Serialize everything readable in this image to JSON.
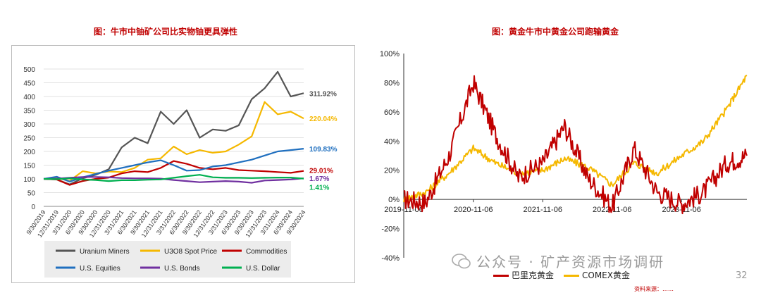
{
  "left": {
    "title": "图：牛市中铀矿公司比实物铀更具弹性"
  },
  "right": {
    "title": "图：黄金牛市中黄金公司跑输黄金"
  },
  "watermark": "公众号 · 矿产资源市场调研",
  "page_number": "32",
  "source_note": "资料来源：……",
  "chart_data": [
    {
      "type": "line",
      "x": [
        "9/30/2019",
        "12/31/2019",
        "3/31/2020",
        "6/30/2020",
        "9/30/2020",
        "12/31/2020",
        "3/31/2021",
        "6/30/2021",
        "9/30/2021",
        "12/31/2021",
        "3/31/2022",
        "6/30/2022",
        "9/30/2022",
        "12/31/2022",
        "3/31/2023",
        "6/30/2023",
        "9/30/2023",
        "12/31/2023",
        "3/31/2024",
        "6/30/2024",
        "9/30/2024"
      ],
      "ylim": [
        0,
        500
      ],
      "yticks": [
        "0",
        "50",
        "100",
        "150",
        "200",
        "250",
        "300",
        "350",
        "400",
        "450",
        "500"
      ],
      "grid": true,
      "legend": "bottom",
      "series": [
        {
          "name": "Uranium Miners",
          "color": "#555555",
          "end_label": "311.92%",
          "values": [
            100,
            98,
            80,
            102,
            115,
            135,
            215,
            250,
            230,
            345,
            300,
            350,
            250,
            280,
            275,
            295,
            390,
            430,
            490,
            400,
            412
          ]
        },
        {
          "name": "U3O8 Spot Price",
          "color": "#f5b800",
          "end_label": "220.04%",
          "values": [
            100,
            103,
            93,
            128,
            120,
            127,
            125,
            140,
            170,
            175,
            218,
            190,
            205,
            195,
            200,
            225,
            255,
            380,
            335,
            345,
            320
          ]
        },
        {
          "name": "Commodities",
          "color": "#c00000",
          "end_label": "29.01%",
          "values": [
            100,
            98,
            78,
            92,
            100,
            105,
            120,
            128,
            125,
            140,
            165,
            155,
            140,
            135,
            140,
            132,
            130,
            128,
            125,
            122,
            129
          ]
        },
        {
          "name": "U.S. Equities",
          "color": "#1f6fbf",
          "end_label": "109.83%",
          "values": [
            100,
            108,
            90,
            106,
            118,
            130,
            140,
            150,
            160,
            168,
            150,
            130,
            132,
            145,
            150,
            160,
            170,
            185,
            200,
            205,
            210
          ]
        },
        {
          "name": "U.S. Bonds",
          "color": "#7030a0",
          "end_label": "1.67%",
          "values": [
            100,
            101,
            104,
            107,
            107,
            106,
            103,
            102,
            102,
            101,
            96,
            92,
            88,
            90,
            92,
            90,
            86,
            94,
            96,
            98,
            102
          ]
        },
        {
          "name": "U.S. Dollar",
          "color": "#00b050",
          "end_label": "1.41%",
          "values": [
            100,
            99,
            102,
            98,
            96,
            92,
            95,
            95,
            97,
            98,
            104,
            110,
            115,
            106,
            104,
            104,
            103,
            104,
            105,
            105,
            101
          ]
        }
      ]
    },
    {
      "type": "line",
      "x": [
        "2019-11-06",
        "2020-03-01",
        "2020-07-01",
        "2020-11-06",
        "2021-03-01",
        "2021-07-01",
        "2021-11-06",
        "2022-03-01",
        "2022-07-01",
        "2022-11-06",
        "2023-03-01",
        "2023-07-01",
        "2023-11-06",
        "2024-03-01",
        "2024-07-01",
        "2024-10-15"
      ],
      "xticks": [
        "2019-11-06",
        "2020-11-06",
        "2021-11-06",
        "2022-11-06",
        "2023-11-06"
      ],
      "ylim": [
        -40,
        100
      ],
      "yticks": [
        "-40%",
        "-20%",
        "0%",
        "20%",
        "40%",
        "60%",
        "80%",
        "100%"
      ],
      "grid": false,
      "legend": "bottom",
      "series": [
        {
          "name": "巴里克黄金",
          "color": "#c00000",
          "values": [
            0,
            -2,
            30,
            80,
            45,
            15,
            25,
            50,
            15,
            -5,
            35,
            5,
            -3,
            5,
            25,
            30
          ]
        },
        {
          "name": "COMEX黄金",
          "color": "#f5b800",
          "values": [
            0,
            5,
            18,
            35,
            25,
            18,
            20,
            28,
            22,
            10,
            25,
            18,
            30,
            40,
            62,
            85
          ]
        }
      ]
    }
  ]
}
